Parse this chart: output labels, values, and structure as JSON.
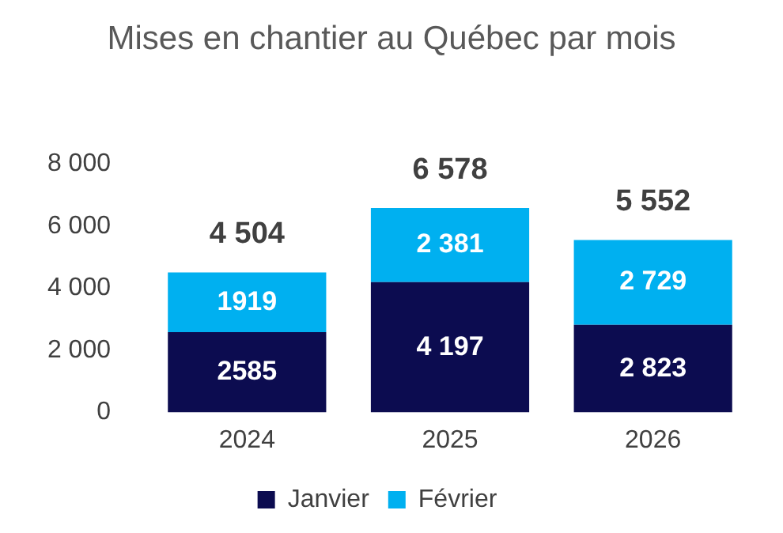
{
  "chart_data": {
    "type": "bar",
    "title": "Mises en chantier au Québec par mois",
    "stacked": true,
    "categories": [
      "2024",
      "2025",
      "2026"
    ],
    "series": [
      {
        "name": "Janvier",
        "color": "#0c0c50",
        "values": [
          2585,
          4197,
          2823
        ],
        "value_labels": [
          "2585",
          "4 197",
          "2 823"
        ]
      },
      {
        "name": "Février",
        "color": "#00b0f0",
        "values": [
          1919,
          2381,
          2729
        ],
        "value_labels": [
          "1919",
          "2 381",
          "2 729"
        ]
      }
    ],
    "totals": [
      "4 504",
      "6 578",
      "5 552"
    ],
    "ylim": [
      0,
      8000
    ],
    "yticks": [
      {
        "value": 0,
        "label": "0"
      },
      {
        "value": 2000,
        "label": "2 000"
      },
      {
        "value": 4000,
        "label": "4 000"
      },
      {
        "value": 6000,
        "label": "6 000"
      },
      {
        "value": 8000,
        "label": "8 000"
      }
    ],
    "grid": false,
    "legend": "bottom"
  }
}
